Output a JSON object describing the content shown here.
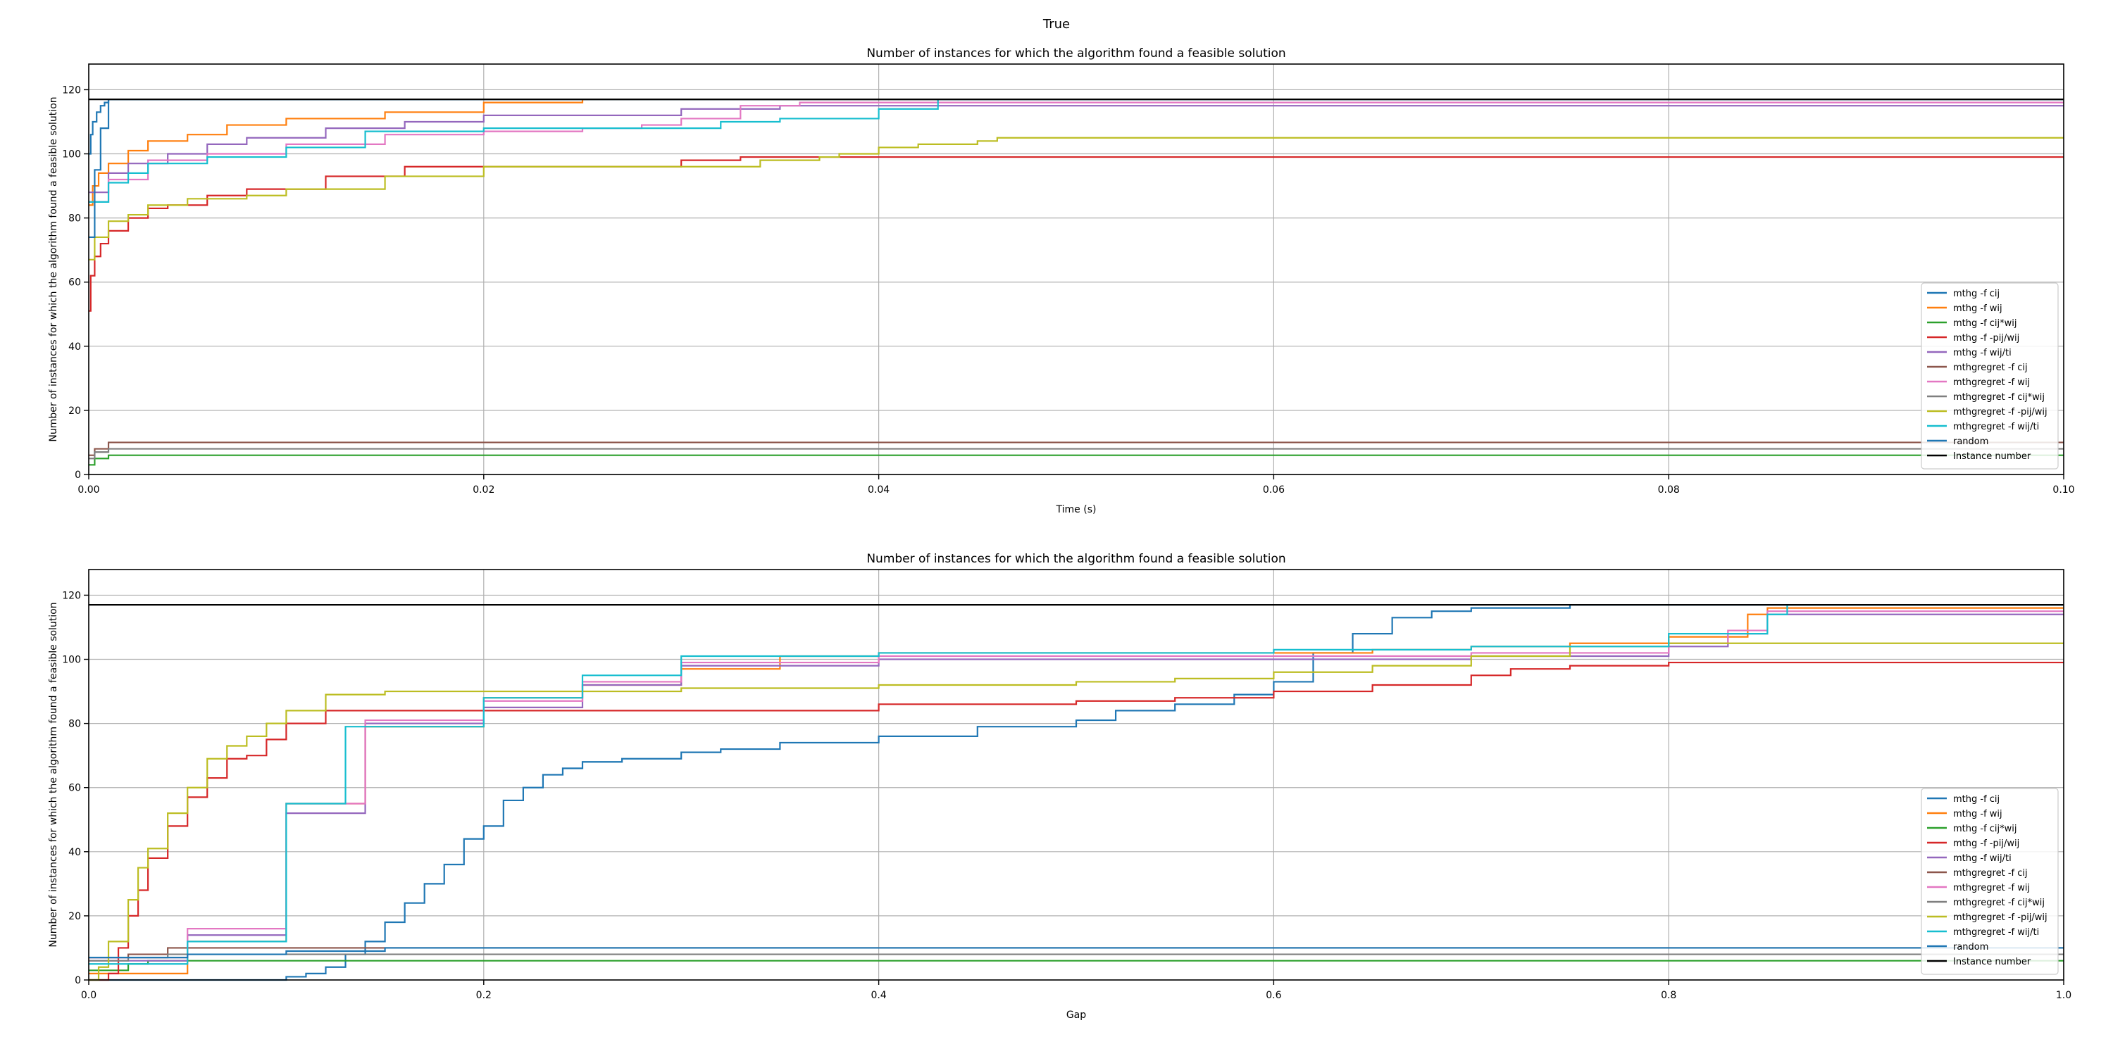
{
  "suptitle": "True",
  "colors": {
    "mthg -f cij": "#1f77b4",
    "mthg -f wij": "#ff7f0e",
    "mthg -f cij*wij": "#2ca02c",
    "mthg -f -pij/wij": "#d62728",
    "mthg -f wij/ti": "#9467bd",
    "mthgregret -f cij": "#8c564b",
    "mthgregret -f wij": "#e377c2",
    "mthgregret -f cij*wij": "#7f7f7f",
    "mthgregret -f -pij/wij": "#bcbd22",
    "mthgregret -f wij/ti": "#17becf",
    "random": "#1f77b4",
    "Instance number": "#000000"
  },
  "chart_data": [
    {
      "type": "line",
      "title": "Number of instances for which the algorithm found a feasible solution",
      "xlabel": "Time (s)",
      "ylabel": "Number of instances for which the algorithm found a feasible solution",
      "xlim": [
        0,
        0.1
      ],
      "ylim": [
        0,
        128
      ],
      "xticks": [
        0,
        0.02,
        0.04,
        0.06,
        0.08,
        0.1
      ],
      "xtick_labels": [
        "0.00",
        "0.02",
        "0.04",
        "0.06",
        "0.08",
        "0.10"
      ],
      "yticks": [
        0,
        20,
        40,
        60,
        80,
        100,
        120
      ],
      "grid": true,
      "legend_position": "lower right",
      "series": [
        {
          "name": "mthg -f cij",
          "x": [
            0,
            0.0001,
            0.0002,
            0.0004,
            0.0006,
            0.0008,
            0.001,
            0.1
          ],
          "y": [
            100,
            106,
            110,
            113,
            115,
            116,
            117,
            117
          ]
        },
        {
          "name": "mthg -f wij",
          "x": [
            0,
            0.0002,
            0.0005,
            0.001,
            0.002,
            0.003,
            0.005,
            0.007,
            0.01,
            0.015,
            0.02,
            0.025,
            0.1
          ],
          "y": [
            84,
            90,
            94,
            97,
            101,
            104,
            106,
            109,
            111,
            113,
            116,
            117,
            117
          ]
        },
        {
          "name": "mthg -f cij*wij",
          "x": [
            0,
            0.0003,
            0.001,
            0.1
          ],
          "y": [
            3,
            5,
            6,
            6
          ]
        },
        {
          "name": "mthg -f -pij/wij",
          "x": [
            0,
            0.0001,
            0.0003,
            0.0006,
            0.001,
            0.002,
            0.003,
            0.004,
            0.006,
            0.008,
            0.012,
            0.016,
            0.028,
            0.03,
            0.033,
            0.034,
            0.1
          ],
          "y": [
            51,
            62,
            68,
            72,
            76,
            80,
            83,
            84,
            87,
            89,
            93,
            96,
            96,
            98,
            99,
            99,
            99
          ]
        },
        {
          "name": "mthg -f wij/ti",
          "x": [
            0,
            0.001,
            0.002,
            0.004,
            0.006,
            0.008,
            0.012,
            0.016,
            0.02,
            0.025,
            0.03,
            0.035,
            0.1
          ],
          "y": [
            88,
            94,
            97,
            100,
            103,
            105,
            108,
            110,
            112,
            112,
            114,
            115,
            115
          ]
        },
        {
          "name": "mthgregret -f cij",
          "x": [
            0,
            0.0003,
            0.001,
            0.1
          ],
          "y": [
            6,
            8,
            10,
            10
          ]
        },
        {
          "name": "mthgregret -f wij",
          "x": [
            0,
            0.001,
            0.003,
            0.006,
            0.01,
            0.015,
            0.02,
            0.025,
            0.028,
            0.03,
            0.033,
            0.036,
            0.1
          ],
          "y": [
            85,
            92,
            98,
            100,
            103,
            106,
            107,
            108,
            109,
            111,
            115,
            116,
            116
          ]
        },
        {
          "name": "mthgregret -f cij*wij",
          "x": [
            0,
            0.0003,
            0.001,
            0.1
          ],
          "y": [
            5,
            7,
            8,
            8
          ]
        },
        {
          "name": "mthgregret -f -pij/wij",
          "x": [
            0,
            0.0003,
            0.001,
            0.002,
            0.003,
            0.005,
            0.008,
            0.01,
            0.015,
            0.02,
            0.03,
            0.034,
            0.037,
            0.038,
            0.04,
            0.042,
            0.045,
            0.046,
            0.1
          ],
          "y": [
            67,
            74,
            79,
            81,
            84,
            86,
            87,
            89,
            93,
            96,
            96,
            98,
            99,
            100,
            102,
            103,
            104,
            105,
            105
          ]
        },
        {
          "name": "mthgregret -f wij/ti",
          "x": [
            0,
            0.001,
            0.002,
            0.003,
            0.006,
            0.01,
            0.014,
            0.02,
            0.03,
            0.032,
            0.035,
            0.04,
            0.043,
            0.1
          ],
          "y": [
            85,
            91,
            94,
            97,
            99,
            102,
            107,
            108,
            108,
            110,
            111,
            114,
            117,
            117
          ]
        },
        {
          "name": "random",
          "x": [
            0,
            0.0003,
            0.0006,
            0.001,
            0.1
          ],
          "y": [
            74,
            95,
            108,
            117,
            117
          ]
        },
        {
          "name": "Instance number",
          "x": [
            0,
            0.1
          ],
          "y": [
            117,
            117
          ]
        }
      ]
    },
    {
      "type": "line",
      "title": "Number of instances for which the algorithm found a feasible solution",
      "xlabel": "Gap",
      "ylabel": "Number of instances for which the algorithm found a feasible solution",
      "xlim": [
        0,
        1
      ],
      "ylim": [
        0,
        128
      ],
      "xticks": [
        0,
        0.2,
        0.4,
        0.6,
        0.8,
        1
      ],
      "xtick_labels": [
        "0.0",
        "0.2",
        "0.4",
        "0.6",
        "0.8",
        "1.0"
      ],
      "yticks": [
        0,
        20,
        40,
        60,
        80,
        100,
        120
      ],
      "grid": true,
      "legend_position": "lower right",
      "series": [
        {
          "name": "mthg -f cij",
          "x": [
            0,
            0.09,
            0.1,
            0.11,
            0.12,
            0.13,
            0.14,
            0.15,
            0.16,
            0.17,
            0.18,
            0.19,
            0.2,
            0.21,
            0.22,
            0.23,
            0.24,
            0.25,
            0.27,
            0.3,
            0.32,
            0.35,
            0.4,
            0.45,
            0.5,
            0.52,
            0.55,
            0.58,
            0.6,
            0.62,
            0.64,
            0.66,
            0.68,
            0.7,
            0.75,
            0.85,
            1
          ],
          "y": [
            0,
            0,
            1,
            2,
            4,
            8,
            12,
            18,
            24,
            30,
            36,
            44,
            48,
            56,
            60,
            64,
            66,
            68,
            69,
            71,
            72,
            74,
            76,
            79,
            81,
            84,
            86,
            89,
            93,
            102,
            108,
            113,
            115,
            116,
            117,
            117,
            117
          ]
        },
        {
          "name": "mthg -f wij",
          "x": [
            0,
            0.05,
            0.1,
            0.14,
            0.2,
            0.25,
            0.3,
            0.35,
            0.4,
            0.5,
            0.6,
            0.65,
            0.7,
            0.75,
            0.8,
            0.84,
            0.85,
            1
          ],
          "y": [
            2,
            12,
            55,
            79,
            88,
            92,
            97,
            101,
            102,
            102,
            102,
            103,
            104,
            105,
            107,
            114,
            116,
            116
          ]
        },
        {
          "name": "mthg -f cij*wij",
          "x": [
            0,
            0.02,
            0.03,
            1
          ],
          "y": [
            3,
            5,
            6,
            6
          ]
        },
        {
          "name": "mthg -f -pij/wij",
          "x": [
            0,
            0.01,
            0.015,
            0.02,
            0.025,
            0.03,
            0.04,
            0.05,
            0.06,
            0.07,
            0.08,
            0.09,
            0.1,
            0.12,
            0.15,
            0.2,
            0.25,
            0.3,
            0.4,
            0.45,
            0.5,
            0.55,
            0.6,
            0.65,
            0.7,
            0.72,
            0.75,
            0.8,
            1
          ],
          "y": [
            0,
            2,
            10,
            20,
            28,
            38,
            48,
            57,
            63,
            69,
            70,
            75,
            80,
            84,
            84,
            84,
            84,
            84,
            86,
            86,
            87,
            88,
            90,
            92,
            95,
            97,
            98,
            99,
            99
          ]
        },
        {
          "name": "mthg -f wij/ti",
          "x": [
            0,
            0.05,
            0.1,
            0.14,
            0.2,
            0.25,
            0.3,
            0.4,
            0.5,
            0.6,
            0.7,
            0.8,
            0.83,
            0.85,
            1
          ],
          "y": [
            6,
            14,
            52,
            80,
            85,
            92,
            98,
            100,
            100,
            100,
            101,
            104,
            108,
            114,
            114
          ]
        },
        {
          "name": "mthgregret -f cij",
          "x": [
            0,
            0.02,
            0.04,
            1
          ],
          "y": [
            7,
            8,
            10,
            10
          ]
        },
        {
          "name": "mthgregret -f wij",
          "x": [
            0,
            0.05,
            0.1,
            0.14,
            0.2,
            0.25,
            0.3,
            0.4,
            0.5,
            0.6,
            0.7,
            0.8,
            0.83,
            0.85,
            1
          ],
          "y": [
            7,
            16,
            55,
            81,
            87,
            93,
            99,
            101,
            101,
            101,
            102,
            105,
            109,
            115,
            115
          ]
        },
        {
          "name": "mthgregret -f cij*wij",
          "x": [
            0,
            0.02,
            0.04,
            1
          ],
          "y": [
            6,
            7,
            8,
            8
          ]
        },
        {
          "name": "mthgregret -f -pij/wij",
          "x": [
            0,
            0.005,
            0.01,
            0.02,
            0.025,
            0.03,
            0.04,
            0.05,
            0.06,
            0.07,
            0.08,
            0.09,
            0.1,
            0.12,
            0.15,
            0.2,
            0.3,
            0.4,
            0.45,
            0.5,
            0.55,
            0.6,
            0.65,
            0.7,
            0.75,
            0.8,
            1
          ],
          "y": [
            0,
            4,
            12,
            25,
            35,
            41,
            52,
            60,
            69,
            73,
            76,
            80,
            84,
            89,
            90,
            90,
            91,
            92,
            92,
            93,
            94,
            96,
            98,
            101,
            104,
            105,
            105
          ]
        },
        {
          "name": "mthgregret -f wij/ti",
          "x": [
            0,
            0.05,
            0.1,
            0.13,
            0.2,
            0.25,
            0.3,
            0.4,
            0.5,
            0.6,
            0.7,
            0.8,
            0.85,
            0.86,
            1
          ],
          "y": [
            5,
            12,
            55,
            79,
            88,
            95,
            101,
            102,
            102,
            103,
            104,
            108,
            114,
            117,
            117
          ]
        },
        {
          "name": "random",
          "x": [
            0,
            0.05,
            0.1,
            0.15,
            1
          ],
          "y": [
            7,
            8,
            9,
            10,
            10
          ]
        },
        {
          "name": "Instance number",
          "x": [
            0,
            0.76,
            0.76,
            1
          ],
          "y": [
            117,
            117,
            117,
            117
          ]
        }
      ]
    }
  ]
}
